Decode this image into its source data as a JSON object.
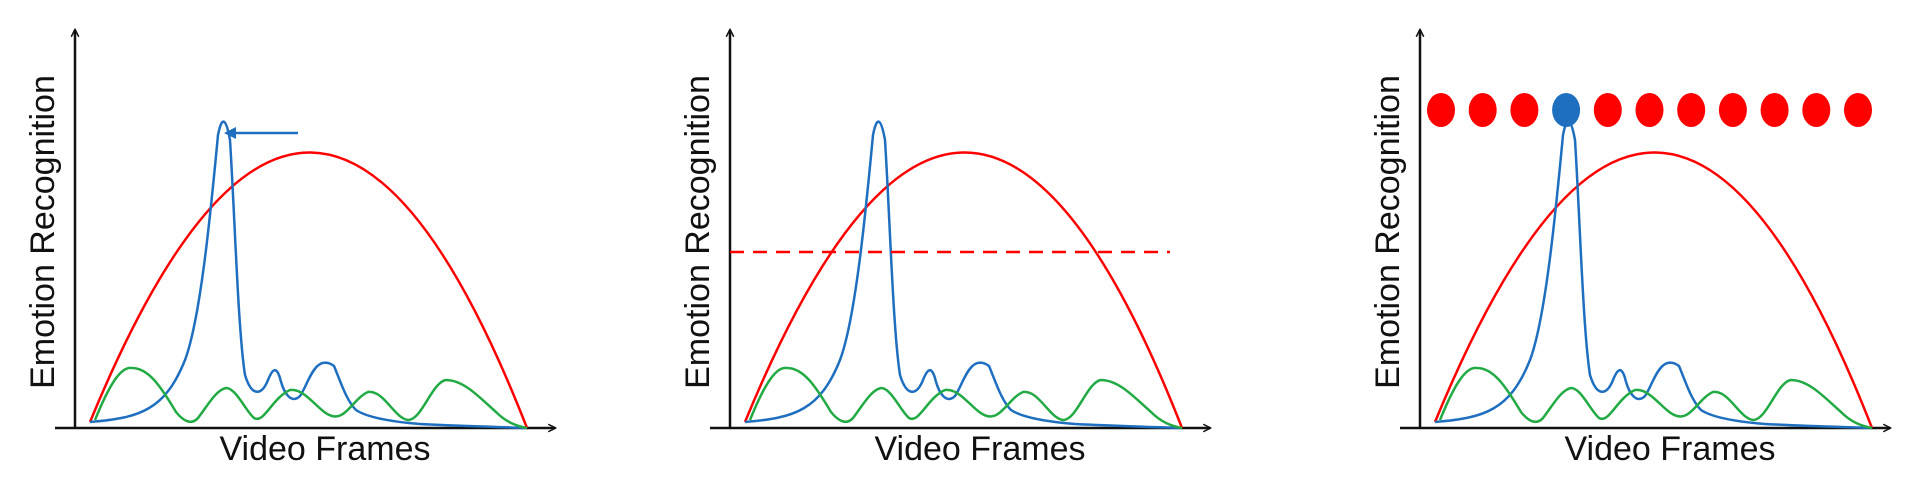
{
  "panels": [
    {
      "x_label": "Video Frames",
      "y_label": "Emotion Recognition",
      "annotation": "arrow"
    },
    {
      "x_label": "Video Frames",
      "y_label": "Emotion Recognition",
      "annotation": "threshold"
    },
    {
      "x_label": "Video Frames",
      "y_label": "Emotion Recognition",
      "annotation": "frame-dots"
    }
  ],
  "frame_dots": {
    "count": 11,
    "selected_index": 3
  },
  "colors": {
    "red_curve": "#ff0000",
    "blue_curve": "#1f6fc0",
    "green_curve": "#22aa44",
    "axis": "#111111",
    "dot_default": "#ff0000",
    "dot_selected": "#1f6fc0"
  }
}
